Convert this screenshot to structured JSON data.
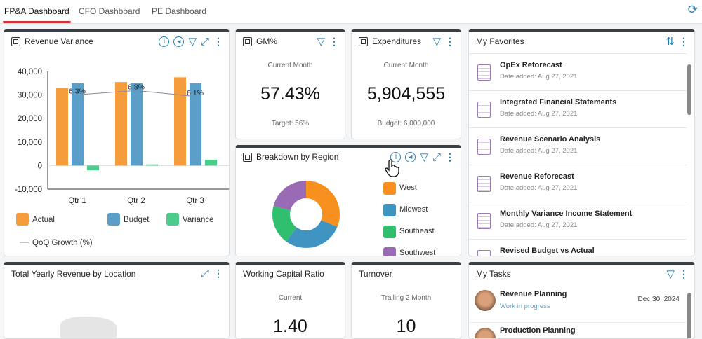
{
  "tabs": [
    {
      "label": "FP&A Dashboard",
      "active": true
    },
    {
      "label": "CFO Dashboard"
    },
    {
      "label": "PE Dashboard"
    }
  ],
  "revenue_variance": {
    "title": "Revenue Variance"
  },
  "chart_data": [
    {
      "type": "bar",
      "title": "Revenue Variance",
      "categories": [
        "Qtr 1",
        "Qtr 2",
        "Qtr 3"
      ],
      "series": [
        {
          "name": "Actual",
          "values": [
            33000,
            35500,
            37500
          ],
          "color": "#f59c3d"
        },
        {
          "name": "Budget",
          "values": [
            35000,
            35000,
            35000
          ],
          "color": "#5b9fc8"
        },
        {
          "name": "Variance",
          "values": [
            -2000,
            500,
            2500
          ],
          "color": "#4ccb8a"
        }
      ],
      "line_series": {
        "name": "QoQ Growth (%)",
        "values": [
          6.3,
          6.8,
          6.1
        ],
        "labels": [
          "6.3%",
          "6.8%",
          "6.1%"
        ]
      },
      "ylim": [
        -10000,
        40000
      ],
      "yticks": [
        "40,000",
        "30,000",
        "20,000",
        "10,000",
        "0",
        "-10,000"
      ],
      "legend": "bottom"
    },
    {
      "type": "pie",
      "title": "Breakdown by Region",
      "donut": true,
      "categories": [
        "West",
        "Midwest",
        "Southeast",
        "Southwest"
      ],
      "values": [
        31,
        29,
        19,
        21
      ],
      "colors": [
        "#f7901e",
        "#3f94c2",
        "#2fbf6e",
        "#9a6bb5"
      ],
      "legend": "right"
    }
  ],
  "gm": {
    "title": "GM%",
    "sub": "Current Month",
    "value": "57.43%",
    "foot": "Target: 56%"
  },
  "exp": {
    "title": "Expenditures",
    "sub": "Current Month",
    "value": "5,904,555",
    "foot": "Budget: 6,000,000"
  },
  "region": {
    "title": "Breakdown by Region"
  },
  "favorites": {
    "title": "My Favorites",
    "items": [
      {
        "title": "OpEx Reforecast",
        "date": "Date added: Aug 27, 2021"
      },
      {
        "title": "Integrated Financial Statements",
        "date": "Date added: Aug 27, 2021"
      },
      {
        "title": "Revenue Scenario Analysis",
        "date": "Date added: Aug 27, 2021"
      },
      {
        "title": "Revenue Reforecast",
        "date": "Date added: Aug 27, 2021"
      },
      {
        "title": "Monthly Variance Income Statement",
        "date": "Date added: Aug 27, 2021"
      },
      {
        "title": "Revised Budget vs Actual",
        "date": ""
      }
    ]
  },
  "yearly": {
    "title": "Total Yearly Revenue by Location"
  },
  "wcr": {
    "title": "Working Capital Ratio",
    "sub": "Current",
    "value": "1.40"
  },
  "turnover": {
    "title": "Turnover",
    "sub": "Trailing 2 Month",
    "value": "10"
  },
  "tasks": {
    "title": "My Tasks",
    "items": [
      {
        "title": "Revenue Planning",
        "status": "Work in progress",
        "date": "Dec 30, 2024"
      },
      {
        "title": "Production Planning"
      }
    ]
  }
}
